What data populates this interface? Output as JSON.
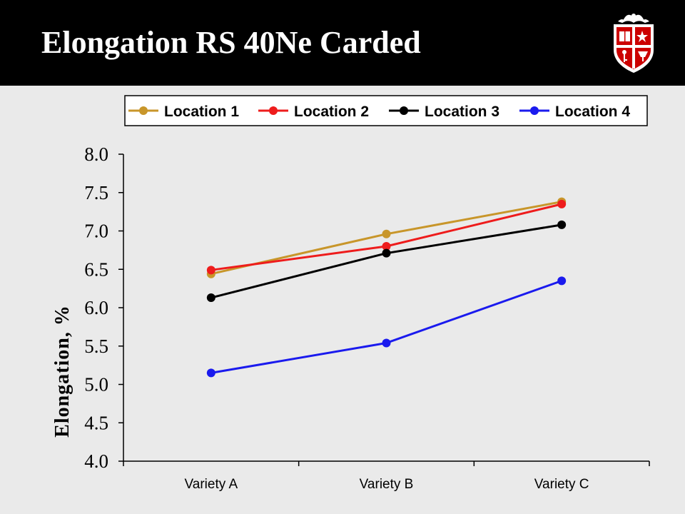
{
  "slide": {
    "title": "Elongation RS 40Ne Carded",
    "logo_icon": "university-shield-logo"
  },
  "colors": {
    "title_bar": "#000000",
    "background": "#eaeaea"
  },
  "chart_data": {
    "type": "line",
    "categories": [
      "Variety A",
      "Variety B",
      "Variety C"
    ],
    "series": [
      {
        "name": "Location 1",
        "color": "#c8962a",
        "values": [
          6.44,
          6.96,
          7.38
        ]
      },
      {
        "name": "Location 2",
        "color": "#ee1c1c",
        "values": [
          6.49,
          6.8,
          7.35
        ]
      },
      {
        "name": "Location 3",
        "color": "#000000",
        "values": [
          6.13,
          6.71,
          7.08
        ]
      },
      {
        "name": "Location 4",
        "color": "#1a1aee",
        "values": [
          5.15,
          5.54,
          6.35
        ]
      }
    ],
    "title": "",
    "xlabel": "",
    "ylabel": "Elongation, %",
    "ylim": [
      4.0,
      8.0
    ],
    "yticks": [
      "4.0",
      "4.5",
      "5.0",
      "5.5",
      "6.0",
      "6.5",
      "7.0",
      "7.5",
      "8.0"
    ],
    "legend_position": "top",
    "grid": false
  }
}
